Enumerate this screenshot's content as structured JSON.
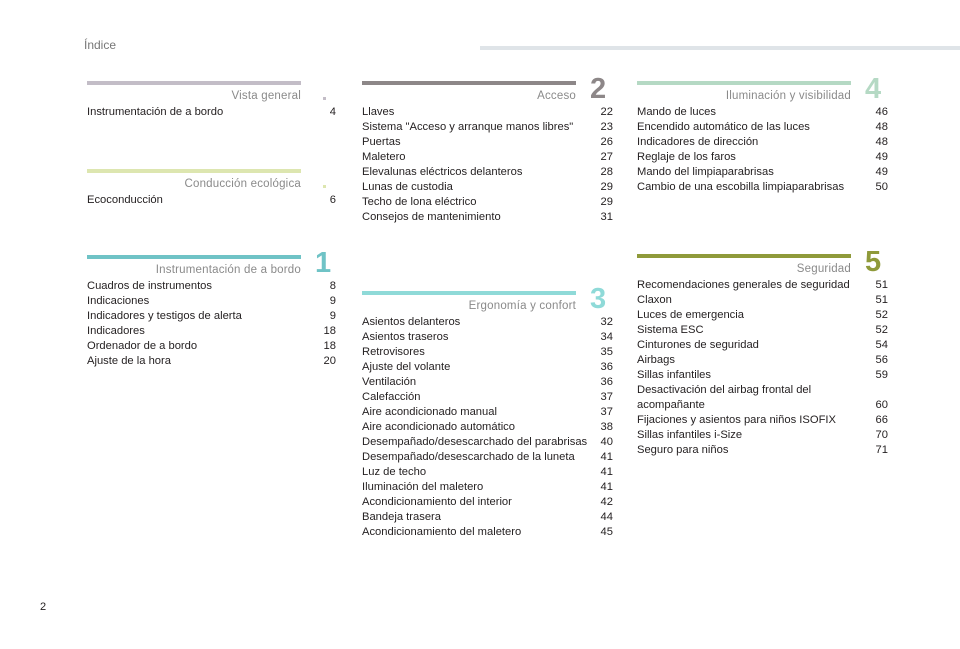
{
  "header": {
    "title": "Índice"
  },
  "page_number": "2",
  "sections": {
    "vista_general": {
      "title": "Vista general",
      "color": "#c3bdc7",
      "entries": [
        {
          "label": "Instrumentación de a bordo",
          "page": "4"
        }
      ]
    },
    "conduccion_ecologica": {
      "title": "Conducción ecológica",
      "color": "#dde6b0",
      "entries": [
        {
          "label": "Ecoconducción",
          "page": "6"
        }
      ]
    },
    "instrumentacion": {
      "title": "Instrumentación de a bordo",
      "number": "1",
      "color": "#6fc3c6",
      "entries": [
        {
          "label": "Cuadros de instrumentos",
          "page": "8"
        },
        {
          "label": "Indicaciones",
          "page": "9"
        },
        {
          "label": "Indicadores y testigos de alerta",
          "page": "9"
        },
        {
          "label": "Indicadores",
          "page": "18"
        },
        {
          "label": "Ordenador de a bordo",
          "page": "18"
        },
        {
          "label": "Ajuste de la hora",
          "page": "20"
        }
      ]
    },
    "acceso": {
      "title": "Acceso",
      "number": "2",
      "color": "#8d8788",
      "entries": [
        {
          "label": "Llaves",
          "page": "22"
        },
        {
          "label": "Sistema \"Acceso y arranque manos libres\"",
          "page": "23"
        },
        {
          "label": "Puertas",
          "page": "26"
        },
        {
          "label": "Maletero",
          "page": "27"
        },
        {
          "label": "Elevalunas eléctricos delanteros",
          "page": "28"
        },
        {
          "label": "Lunas de custodia",
          "page": "29"
        },
        {
          "label": "Techo de lona eléctrico",
          "page": "29"
        },
        {
          "label": "Consejos de mantenimiento",
          "page": "31"
        }
      ]
    },
    "ergonomia": {
      "title": "Ergonomía y confort",
      "number": "3",
      "color": "#8fdad8",
      "entries": [
        {
          "label": "Asientos delanteros",
          "page": "32"
        },
        {
          "label": "Asientos traseros",
          "page": "34"
        },
        {
          "label": "Retrovisores",
          "page": "35"
        },
        {
          "label": "Ajuste del volante",
          "page": "36"
        },
        {
          "label": "Ventilación",
          "page": "36"
        },
        {
          "label": "Calefacción",
          "page": "37"
        },
        {
          "label": "Aire acondicionado manual",
          "page": "37"
        },
        {
          "label": "Aire acondicionado automático",
          "page": "38"
        },
        {
          "label": "Desempañado/desescarchado del parabrisas",
          "page": "40"
        },
        {
          "label": "Desempañado/desescarchado de la luneta",
          "page": "41"
        },
        {
          "label": "Luz de techo",
          "page": "41"
        },
        {
          "label": "Iluminación del maletero",
          "page": "41"
        },
        {
          "label": "Acondicionamiento del interior",
          "page": "42"
        },
        {
          "label": "Bandeja trasera",
          "page": "44"
        },
        {
          "label": "Acondicionamiento del maletero",
          "page": "45"
        }
      ]
    },
    "iluminacion": {
      "title": "Iluminación y visibilidad",
      "number": "4",
      "color": "#b5d9c4",
      "entries": [
        {
          "label": "Mando de luces",
          "page": "46"
        },
        {
          "label": "Encendido automático de las luces",
          "page": "48"
        },
        {
          "label": "Indicadores de dirección",
          "page": "48"
        },
        {
          "label": "Reglaje de los faros",
          "page": "49"
        },
        {
          "label": "Mando del limpiaparabrisas",
          "page": "49"
        },
        {
          "label": "Cambio de una escobilla limpiaparabrisas",
          "page": "50"
        }
      ]
    },
    "seguridad": {
      "title": "Seguridad",
      "number": "5",
      "color": "#8f9a3a",
      "entries": [
        {
          "label": "Recomendaciones generales de seguridad",
          "page": "51"
        },
        {
          "label": "Claxon",
          "page": "51"
        },
        {
          "label": "Luces de emergencia",
          "page": "52"
        },
        {
          "label": "Sistema ESC",
          "page": "52"
        },
        {
          "label": "Cinturones de seguridad",
          "page": "54"
        },
        {
          "label": "Airbags",
          "page": "56"
        },
        {
          "label": "Sillas infantiles",
          "page": "59"
        },
        {
          "label": "Desactivación del airbag frontal del acompañante",
          "page": "60"
        },
        {
          "label": "Fijaciones y asientos para niños ISOFIX",
          "page": "66"
        },
        {
          "label": "Sillas infantiles i-Size",
          "page": "70"
        },
        {
          "label": "Seguro para niños",
          "page": "71"
        }
      ]
    }
  }
}
